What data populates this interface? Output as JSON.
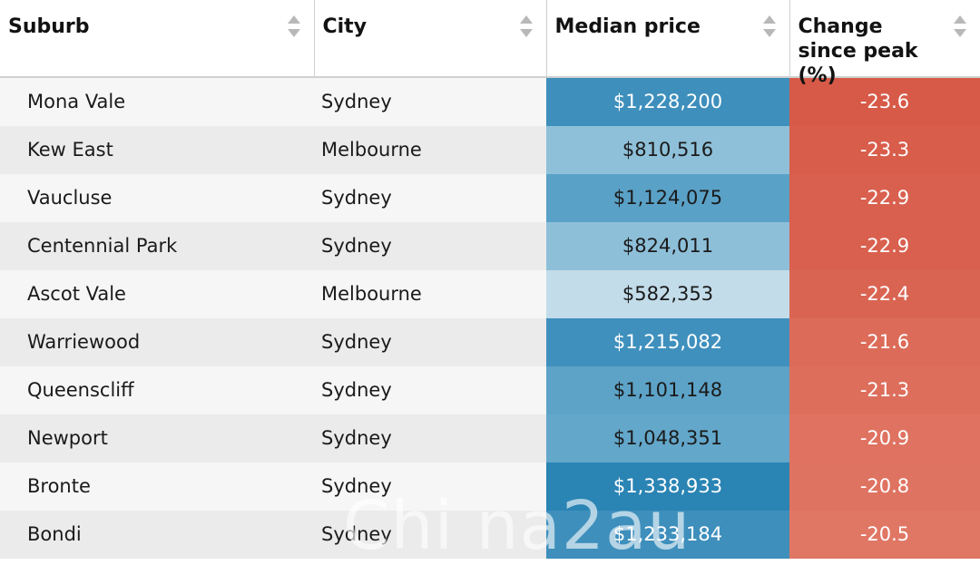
{
  "table": {
    "headers": [
      {
        "label": "Suburb",
        "sort_icon": "sort-arrows-icon"
      },
      {
        "label": "City",
        "sort_icon": "sort-arrows-icon"
      },
      {
        "label": "Median price",
        "sort_icon": "sort-arrows-icon"
      },
      {
        "label": "Change since peak (%)",
        "sort_icon": "sort-arrows-icon"
      }
    ],
    "rows": [
      {
        "suburb": "Mona Vale",
        "city": "Sydney",
        "price": "$1,228,200",
        "change": "-23.6",
        "price_bg": "#3e8fbc",
        "price_fg": "#ffffff",
        "change_bg": "#d75a48"
      },
      {
        "suburb": "Kew East",
        "city": "Melbourne",
        "price": "$810,516",
        "change": "-23.3",
        "price_bg": "#8fc0d9",
        "price_fg": "#1a1a1a",
        "change_bg": "#d85d4b"
      },
      {
        "suburb": "Vaucluse",
        "city": "Sydney",
        "price": "$1,124,075",
        "change": "-22.9",
        "price_bg": "#5aa1c7",
        "price_fg": "#1a1a1a",
        "change_bg": "#d9604e"
      },
      {
        "suburb": "Centennial Park",
        "city": "Sydney",
        "price": "$824,011",
        "change": "-22.9",
        "price_bg": "#8ebfd9",
        "price_fg": "#1a1a1a",
        "change_bg": "#d9604e"
      },
      {
        "suburb": "Ascot Vale",
        "city": "Melbourne",
        "price": "$582,353",
        "change": "-22.4",
        "price_bg": "#c2dce9",
        "price_fg": "#1a1a1a",
        "change_bg": "#da6452"
      },
      {
        "suburb": "Warriewood",
        "city": "Sydney",
        "price": "$1,215,082",
        "change": "-21.6",
        "price_bg": "#3f90bd",
        "price_fg": "#ffffff",
        "change_bg": "#dc6b59"
      },
      {
        "suburb": "Queenscliff",
        "city": "Sydney",
        "price": "$1,101,148",
        "change": "-21.3",
        "price_bg": "#5da3c8",
        "price_fg": "#1a1a1a",
        "change_bg": "#dd6e5c"
      },
      {
        "suburb": "Newport",
        "city": "Sydney",
        "price": "$1,048,351",
        "change": "-20.9",
        "price_bg": "#63a7ca",
        "price_fg": "#1a1a1a",
        "change_bg": "#df7260"
      },
      {
        "suburb": "Bronte",
        "city": "Sydney",
        "price": "$1,338,933",
        "change": "-20.8",
        "price_bg": "#2a84b4",
        "price_fg": "#ffffff",
        "change_bg": "#df7361"
      },
      {
        "suburb": "Bondi",
        "city": "Sydney",
        "price": "$1,233,184",
        "change": "-20.5",
        "price_bg": "#3e8fbc",
        "price_fg": "#ffffff",
        "change_bg": "#e07664"
      }
    ]
  },
  "watermark": "Chi na2au"
}
